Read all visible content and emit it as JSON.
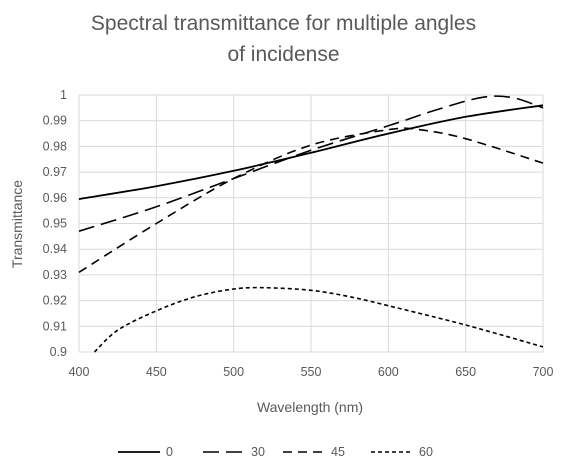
{
  "chart_data": {
    "type": "line",
    "title_lines": [
      "Spectral transmittance for multiple angles",
      "of incidense"
    ],
    "xlabel": "Wavelength (nm)",
    "ylabel": "Transmittance",
    "xlim": [
      400,
      700
    ],
    "ylim": [
      0.9,
      1.0
    ],
    "x_ticks": [
      400,
      450,
      500,
      550,
      600,
      650,
      700
    ],
    "y_ticks": [
      {
        "value": 0.9,
        "label": "0.9"
      },
      {
        "value": 0.91,
        "label": "0.91"
      },
      {
        "value": 0.92,
        "label": "0.92"
      },
      {
        "value": 0.93,
        "label": "0.93"
      },
      {
        "value": 0.94,
        "label": "0.94"
      },
      {
        "value": 0.95,
        "label": "0.95"
      },
      {
        "value": 0.96,
        "label": "0.96"
      },
      {
        "value": 0.97,
        "label": "0.97"
      },
      {
        "value": 0.98,
        "label": "0.98"
      },
      {
        "value": 0.99,
        "label": "0.99"
      },
      {
        "value": 1.0,
        "label": "1"
      }
    ],
    "grid": "vertical-and-horizontal",
    "legend_position": "bottom",
    "line_color": "#000000",
    "grid_color": "#d9d9d9",
    "series": [
      {
        "name": "0",
        "dash": "solid",
        "x": [
          400,
          450,
          500,
          550,
          600,
          650,
          700
        ],
        "y": [
          0.9595,
          0.9645,
          0.9705,
          0.9775,
          0.985,
          0.9915,
          0.996
        ]
      },
      {
        "name": "30",
        "dash": "long-dash",
        "x": [
          400,
          450,
          500,
          550,
          600,
          630,
          660,
          680,
          700
        ],
        "y": [
          0.947,
          0.9565,
          0.9675,
          0.9785,
          0.988,
          0.994,
          0.999,
          0.999,
          0.995
        ]
      },
      {
        "name": "45",
        "dash": "dash",
        "x": [
          400,
          450,
          500,
          550,
          600,
          620,
          650,
          700
        ],
        "y": [
          0.931,
          0.95,
          0.9675,
          0.9805,
          0.9865,
          0.9865,
          0.983,
          0.9735
        ]
      },
      {
        "name": "60",
        "dash": "short-dash",
        "x": [
          410,
          425,
          450,
          475,
          500,
          520,
          550,
          575,
          600,
          650,
          700
        ],
        "y": [
          0.9,
          0.9085,
          0.916,
          0.9215,
          0.9245,
          0.925,
          0.924,
          0.9215,
          0.918,
          0.9105,
          0.902
        ]
      }
    ]
  }
}
